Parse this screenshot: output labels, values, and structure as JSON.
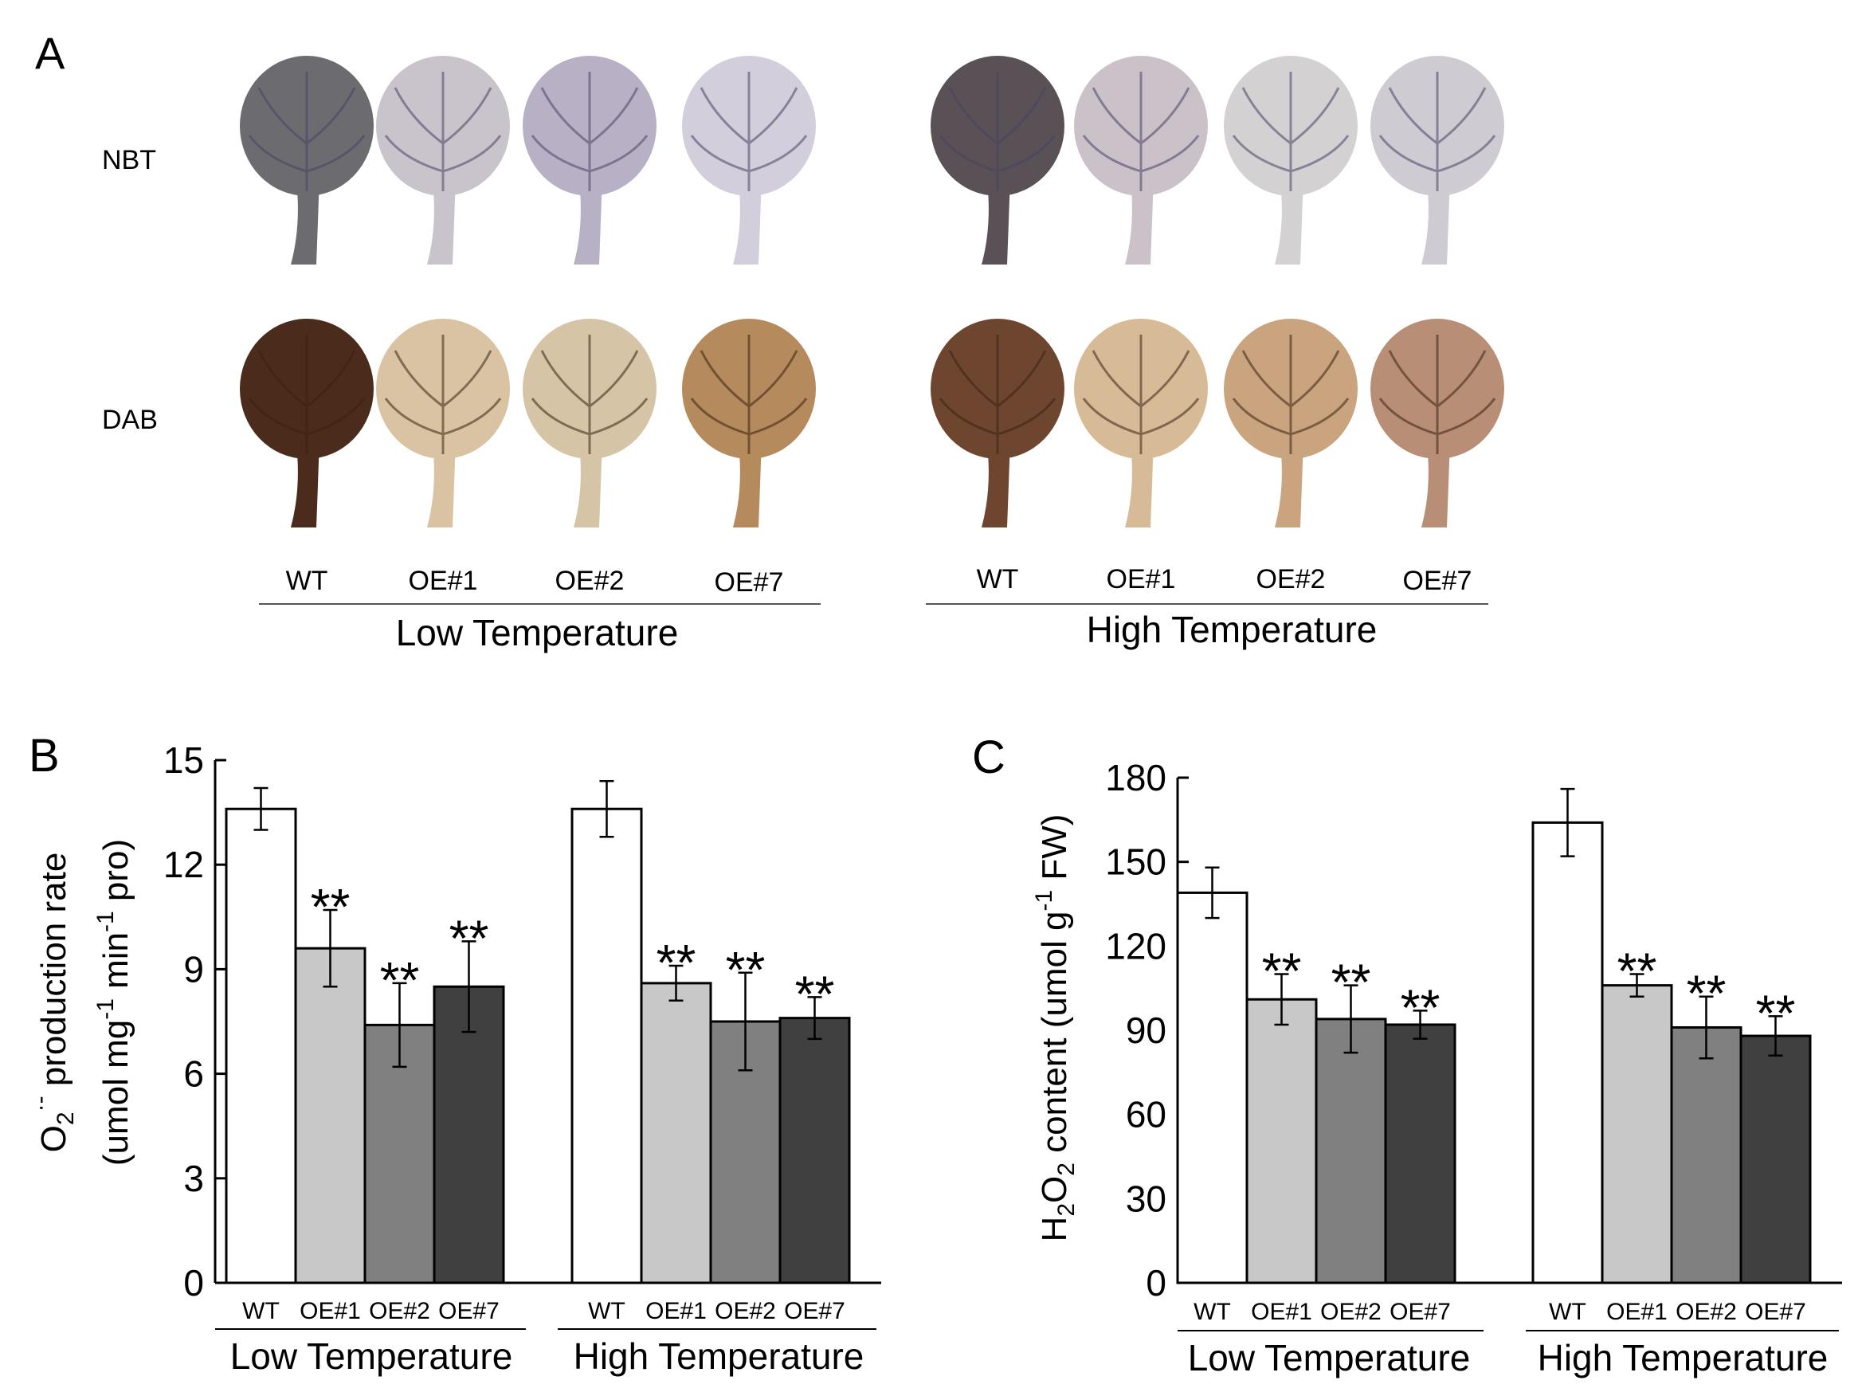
{
  "panel_a": {
    "panel_label": "A",
    "row_labels": [
      "NBT",
      "DAB"
    ],
    "groups": [
      {
        "name": "Low Temperature",
        "genotypes": [
          "WT",
          "OE#1",
          "OE#2",
          "OE#7"
        ]
      },
      {
        "name": "High Temperature",
        "genotypes": [
          "WT",
          "OE#1",
          "OE#2",
          "OE#7"
        ]
      }
    ],
    "stain_colors": {
      "NBT": [
        "#6c6c70",
        "#c9c4cc",
        "#b8b1c6",
        "#d2cedb",
        "#5a5156",
        "#cbc2c9",
        "#d4d1d3",
        "#cfcbd2"
      ],
      "DAB": [
        "#4a2b1c",
        "#d9c3a3",
        "#d6c4a6",
        "#b58a5c",
        "#6e4630",
        "#d7bb96",
        "#c9a47e",
        "#b88f76"
      ]
    }
  },
  "chart_data": [
    {
      "type": "bar",
      "panel_label": "B",
      "ylabel": "O2·- production rate (umol mg-1 min-1 pro)",
      "ylabel_parts": {
        "line1": {
          "a": "O",
          "sub": "2",
          "sup": "·-",
          "rest": " production rate"
        },
        "line2": {
          "a": "(umol mg",
          "sup1": "-1",
          "b": " min",
          "sup2": "-1",
          "c": " pro)"
        }
      },
      "ylim": [
        0,
        15
      ],
      "yticks": [
        0,
        3,
        6,
        9,
        12,
        15
      ],
      "groups": [
        "Low Temperature",
        "High Temperature"
      ],
      "categories": [
        "WT",
        "OE#1",
        "OE#2",
        "OE#7"
      ],
      "series_colors": [
        "#ffffff",
        "#c8c8c8",
        "#808080",
        "#404040"
      ],
      "values": [
        [
          13.6,
          9.6,
          7.4,
          8.5
        ],
        [
          13.6,
          8.6,
          7.5,
          7.6
        ]
      ],
      "errors": [
        [
          0.6,
          1.1,
          1.2,
          1.3
        ],
        [
          0.8,
          0.5,
          1.4,
          0.6
        ]
      ],
      "significance": [
        [
          "",
          "**",
          "**",
          "**"
        ],
        [
          "",
          "**",
          "**",
          "**"
        ]
      ]
    },
    {
      "type": "bar",
      "panel_label": "C",
      "ylabel": "H2O2 content (umol g-1 FW)",
      "ylabel_parts": {
        "h": "H",
        "sub1": "2",
        "o": "O",
        "sub2": "2",
        "mid": " content (umol g",
        "sup": "-1",
        "end": " FW)"
      },
      "ylim": [
        0,
        180
      ],
      "yticks": [
        0,
        30,
        60,
        90,
        120,
        150,
        180
      ],
      "groups": [
        "Low Temperature",
        "High Temperature"
      ],
      "categories": [
        "WT",
        "OE#1",
        "OE#2",
        "OE#7"
      ],
      "series_colors": [
        "#ffffff",
        "#c8c8c8",
        "#808080",
        "#404040"
      ],
      "values": [
        [
          139,
          101,
          94,
          92
        ],
        [
          164,
          106,
          91,
          88
        ]
      ],
      "errors": [
        [
          9,
          9,
          12,
          5
        ],
        [
          12,
          4,
          11,
          7
        ]
      ],
      "significance": [
        [
          "",
          "**",
          "**",
          "**"
        ],
        [
          "",
          "**",
          "**",
          "**"
        ]
      ]
    }
  ]
}
